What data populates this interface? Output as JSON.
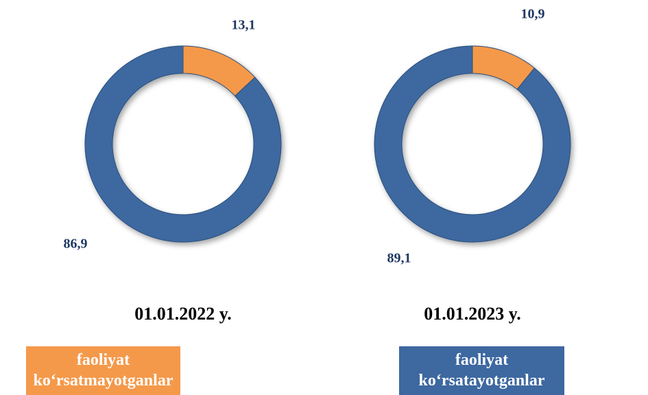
{
  "chart_data": [
    {
      "type": "donut",
      "title": "01.01.2022 y.",
      "values": [
        13.1,
        86.9
      ],
      "value_labels": [
        "13,1",
        "86,9"
      ]
    },
    {
      "type": "donut",
      "title": "01.01.2023 y.",
      "values": [
        10.9,
        89.1
      ],
      "value_labels": [
        "10,9",
        "89,1"
      ]
    }
  ],
  "legend": {
    "items": [
      {
        "name": "faoliyat ko‘rsatmayotganlar",
        "color": "#f4994a"
      },
      {
        "name": "faoliyat ko‘rsatayotganlar",
        "color": "#3d68a0"
      }
    ]
  }
}
